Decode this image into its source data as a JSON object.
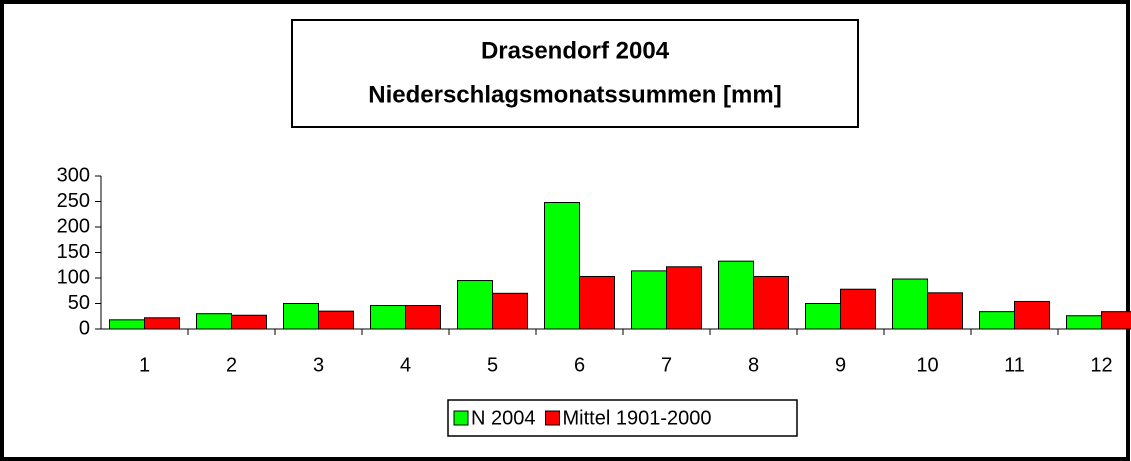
{
  "chart_data": {
    "type": "bar",
    "title": [
      "Drasendorf 2004",
      "Niederschlagsmonatssummen [mm]"
    ],
    "categories": [
      "1",
      "2",
      "3",
      "4",
      "5",
      "6",
      "7",
      "8",
      "9",
      "10",
      "11",
      "12"
    ],
    "series": [
      {
        "name": "N 2004",
        "color": "#00ff00",
        "values": [
          18,
          30,
          50,
          46,
          95,
          248,
          114,
          133,
          50,
          98,
          34,
          26
        ]
      },
      {
        "name": "Mittel 1901-2000",
        "color": "#ff0000",
        "values": [
          22,
          27,
          35,
          46,
          70,
          103,
          122,
          103,
          78,
          71,
          54,
          34
        ]
      }
    ],
    "ylim": [
      0,
      300
    ],
    "yticks": [
      0,
      50,
      100,
      150,
      200,
      250,
      300
    ],
    "grid": false,
    "legend": "bottom"
  }
}
